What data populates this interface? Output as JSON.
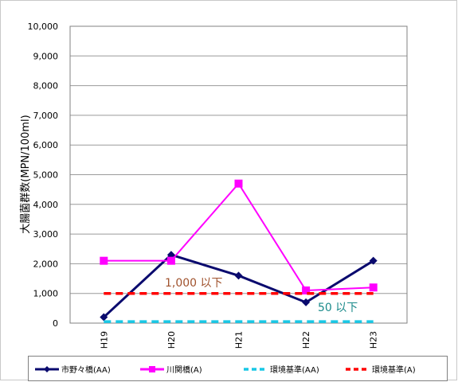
{
  "chart_data": {
    "type": "line",
    "ylabel": "大腸菌群数(MPN/100ml)",
    "xlabel": "",
    "categories": [
      "H19",
      "H20",
      "H21",
      "H22",
      "H23"
    ],
    "ylim": [
      0,
      10000
    ],
    "yticks": [
      "0",
      "1,000",
      "2,000",
      "3,000",
      "4,000",
      "5,000",
      "6,000",
      "7,000",
      "8,000",
      "9,000",
      "10,000"
    ],
    "ytick_values": [
      0,
      1000,
      2000,
      3000,
      4000,
      5000,
      6000,
      7000,
      8000,
      9000,
      10000
    ],
    "grid": true,
    "legend_position": "bottom",
    "series": [
      {
        "name": "市野々橋(AA)",
        "values": [
          200,
          2300,
          1600,
          700,
          2100
        ],
        "color": "#0a0a6e",
        "style": "solid",
        "marker": "diamond"
      },
      {
        "name": "川関橋(A)",
        "values": [
          2100,
          2100,
          4700,
          1100,
          1200
        ],
        "color": "#ff00ff",
        "style": "solid",
        "marker": "square"
      },
      {
        "name": "環境基準(AA)",
        "values": [
          50,
          50,
          50,
          50,
          50
        ],
        "color": "#19c8e6",
        "style": "dashed",
        "marker": "none"
      },
      {
        "name": "環境基準(A)",
        "values": [
          1000,
          1000,
          1000,
          1000,
          1000
        ],
        "color": "#ff0000",
        "style": "dashed",
        "marker": "none"
      }
    ],
    "annotations": [
      {
        "text": "1,000 以下",
        "color": "#a0522d"
      },
      {
        "text": "50 以下",
        "color": "#1a8a8a"
      }
    ]
  }
}
